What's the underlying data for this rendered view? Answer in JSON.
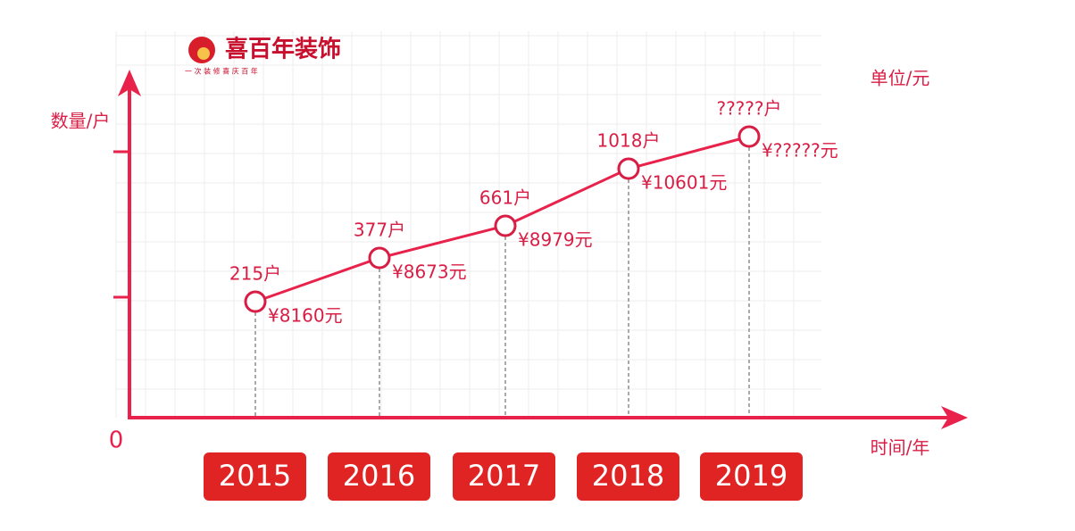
{
  "logo": {
    "name": "喜百年装饰",
    "slogan": "一 次 装 修 喜 庆 百 年"
  },
  "axes": {
    "y_label": "数量/户",
    "y2_label": "单位/元",
    "x_label": "时间/年",
    "origin": "0"
  },
  "points": [
    {
      "year": "2015",
      "households": "215户",
      "price": "¥8160元"
    },
    {
      "year": "2016",
      "households": "377户",
      "price": "¥8673元"
    },
    {
      "year": "2017",
      "households": "661户",
      "price": "¥8979元"
    },
    {
      "year": "2018",
      "households": "1018户",
      "price": "¥10601元"
    },
    {
      "year": "2019",
      "households": "?????户",
      "price": "¥?????元"
    }
  ]
}
